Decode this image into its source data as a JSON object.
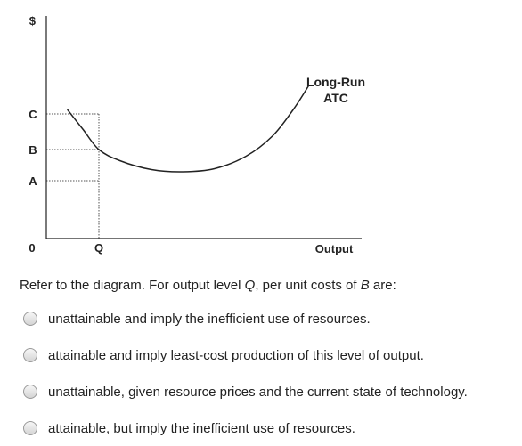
{
  "chart_data": {
    "type": "line",
    "title": "",
    "xlabel": "Output",
    "ylabel": "$",
    "origin_label": "0",
    "x_ticks": [
      {
        "label": "Q",
        "value": 1.0
      }
    ],
    "y_ticks": [
      {
        "label": "A",
        "value": 1.3
      },
      {
        "label": "B",
        "value": 2.0
      },
      {
        "label": "C",
        "value": 2.8
      }
    ],
    "xlim": [
      0,
      6.0
    ],
    "ylim": [
      0,
      5.0
    ],
    "curve_label_lines": [
      "Long-Run",
      "ATC"
    ],
    "series": [
      {
        "name": "Long-Run ATC",
        "x": [
          0.4,
          0.7,
          1.0,
          1.4,
          2.0,
          2.6,
          3.2,
          3.8,
          4.3,
          4.7,
          5.0
        ],
        "y": [
          2.9,
          2.45,
          2.0,
          1.75,
          1.55,
          1.5,
          1.57,
          1.85,
          2.3,
          2.9,
          3.45
        ]
      }
    ]
  },
  "question": {
    "prefix": "Refer to the diagram. For output level ",
    "var1": "Q",
    "middle": ", per unit costs of ",
    "var2": "B",
    "suffix": " are:"
  },
  "options": [
    {
      "label": "unattainable and imply the inefficient use of resources."
    },
    {
      "label": "attainable and imply least-cost production of this level of output."
    },
    {
      "label": "unattainable, given resource prices and the current state of technology."
    },
    {
      "label": "attainable, but imply the inefficient use of resources."
    }
  ]
}
